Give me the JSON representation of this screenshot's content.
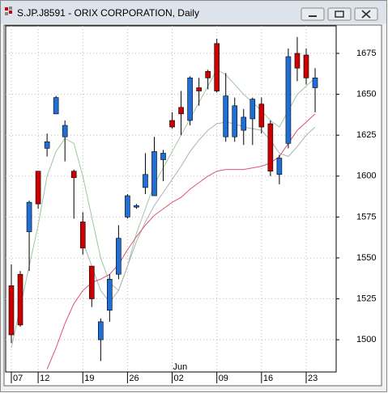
{
  "window_title": "S.JP.J8591 - ORIX CORPORATION, Daily",
  "chart_data": {
    "type": "candlestick",
    "categories": [
      "07",
      null,
      null,
      "12",
      null,
      null,
      null,
      null,
      "19",
      null,
      null,
      null,
      null,
      "26",
      null,
      null,
      null,
      null,
      "02",
      null,
      null,
      null,
      null,
      "09",
      null,
      null,
      null,
      null,
      "16",
      null,
      null,
      null,
      null,
      "23",
      null
    ],
    "month_labels": [
      null,
      null,
      null,
      null,
      null,
      null,
      null,
      null,
      null,
      null,
      null,
      null,
      null,
      null,
      null,
      null,
      null,
      null,
      "Jun",
      null,
      null,
      null,
      null,
      null,
      null,
      null,
      null,
      null,
      null,
      null,
      null,
      null,
      null,
      null,
      null
    ],
    "open": [
      1533,
      1540,
      1566,
      1603,
      1617,
      1638,
      1624,
      1603,
      1572,
      1545,
      1500,
      1518,
      1540,
      1575,
      1581,
      1593,
      1588,
      1610,
      1634,
      1642,
      1634,
      1654,
      1664,
      1681,
      1624,
      1624,
      1628,
      1635,
      1644,
      1632,
      1601,
      1620,
      1675,
      1674,
      1654
    ],
    "high": [
      1546,
      1542,
      1585,
      1603,
      1626,
      1649,
      1634,
      1604,
      1578,
      1545,
      1513,
      1540,
      1570,
      1589,
      1583,
      1614,
      1624,
      1616,
      1639,
      1652,
      1661,
      1660,
      1665,
      1684,
      1663,
      1648,
      1641,
      1648,
      1648,
      1634,
      1613,
      1678,
      1685,
      1678,
      1666
    ],
    "low": [
      1498,
      1508,
      1542,
      1580,
      1612,
      1638,
      1609,
      1574,
      1552,
      1520,
      1487,
      1511,
      1537,
      1574,
      1580,
      1589,
      1588,
      1597,
      1629,
      1625,
      1631,
      1643,
      1653,
      1651,
      1621,
      1621,
      1619,
      1619,
      1626,
      1600,
      1595,
      1617,
      1658,
      1656,
      1639
    ],
    "close": [
      1503,
      1509,
      1584,
      1583,
      1621,
      1648,
      1631,
      1599,
      1556,
      1525,
      1511,
      1537,
      1562,
      1588,
      1582,
      1601,
      1615,
      1614,
      1630,
      1638,
      1660,
      1652,
      1660,
      1652,
      1649,
      1643,
      1636,
      1647,
      1630,
      1603,
      1611,
      1673,
      1666,
      1660,
      1660
    ],
    "up_color": "#1f6fd6",
    "down_color": "#cc0000",
    "overlays": [
      {
        "color": "#9fc79f",
        "values": [
          1495,
          1520,
          1545,
          1570,
          1600,
          1615,
          1623,
          1620,
          1600,
          1575,
          1550,
          1535,
          1530,
          1545,
          1565,
          1580,
          1595,
          1605,
          1615,
          1625,
          1635,
          1645,
          1655,
          1665,
          1662,
          1656,
          1650,
          1645,
          1640,
          1634,
          1630,
          1640,
          1650,
          1655,
          1660
        ]
      },
      {
        "color": "#a8b4b4",
        "values": [
          null,
          null,
          null,
          null,
          null,
          null,
          null,
          null,
          1560,
          1545,
          1530,
          1523,
          1530,
          1545,
          1560,
          1572,
          1582,
          1590,
          1598,
          1606,
          1615,
          1622,
          1628,
          1632,
          1633,
          1632,
          1630,
          1629,
          1628,
          1622,
          1614,
          1612,
          1618,
          1625,
          1630
        ]
      },
      {
        "color": "#e0507a",
        "values": [
          null,
          null,
          null,
          null,
          1482,
          1495,
          1510,
          1522,
          1530,
          1535,
          1537,
          1540,
          1546,
          1555,
          1563,
          1570,
          1576,
          1580,
          1584,
          1587,
          1592,
          1596,
          1600,
          1603,
          1604,
          1604,
          1604,
          1605,
          1606,
          1608,
          1612,
          1620,
          1628,
          1633,
          1638
        ]
      }
    ],
    "ylim": [
      1480.3,
      1691.8
    ],
    "yticks": [
      1500,
      1525,
      1550,
      1575,
      1600,
      1625,
      1650,
      1675
    ],
    "grid": true
  }
}
